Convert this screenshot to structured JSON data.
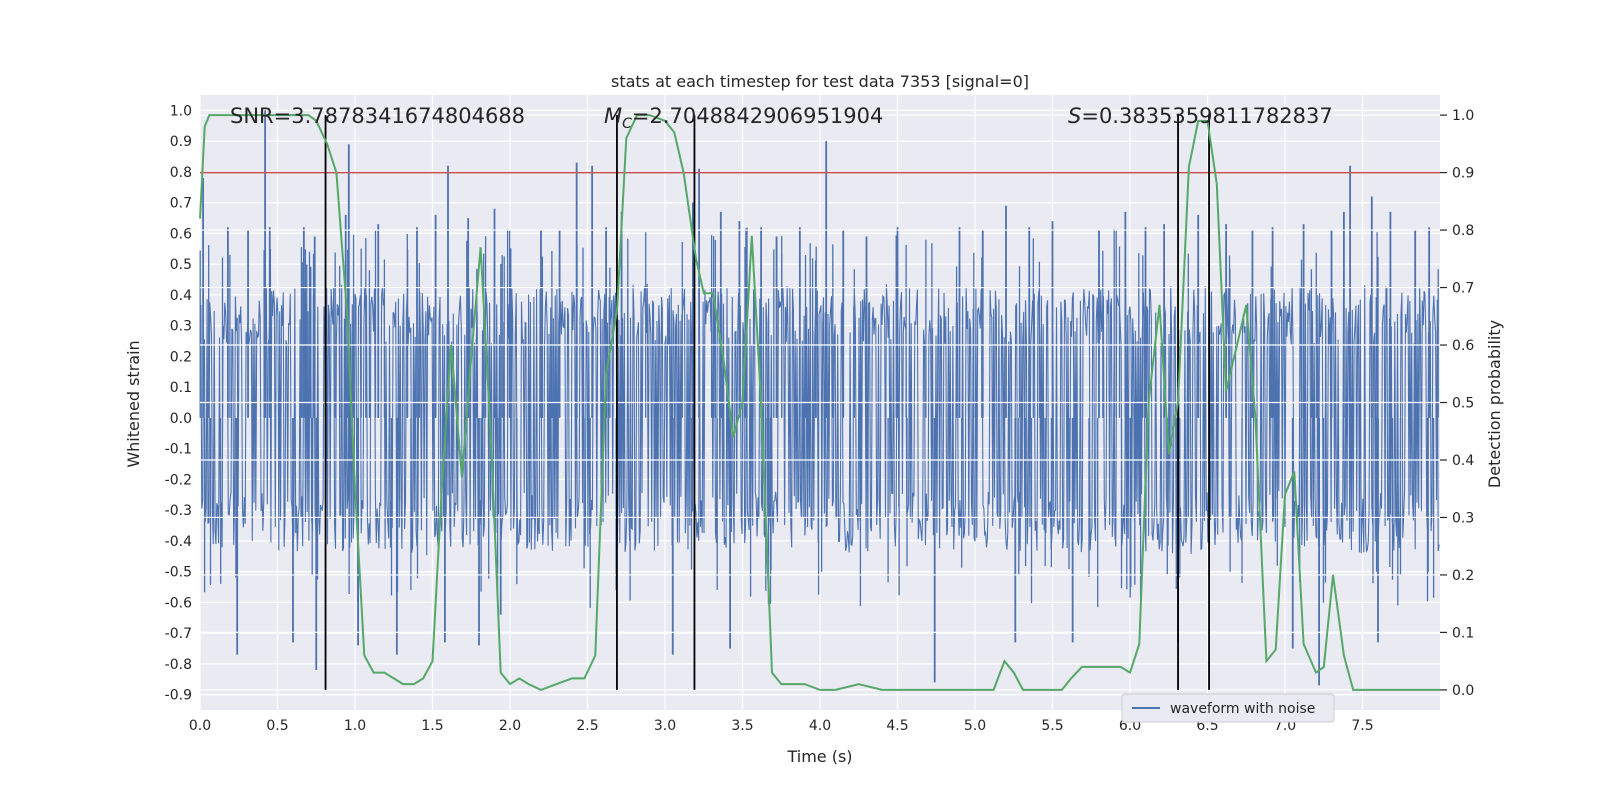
{
  "chart_data": {
    "type": "line",
    "title": "stats at each timestep for test data 7353 [signal=0]",
    "xlabel": "Time (s)",
    "ylabel_left": "Whitened strain",
    "ylabel_right": "Detection probability",
    "xlim": [
      0.0,
      8.0
    ],
    "ylim_left": [
      -0.95,
      1.05
    ],
    "ylim_right": [
      -0.035,
      1.035
    ],
    "x_ticks": [
      "0.0",
      "0.5",
      "1.0",
      "1.5",
      "2.0",
      "2.5",
      "3.0",
      "3.5",
      "4.0",
      "4.5",
      "5.0",
      "5.5",
      "6.0",
      "6.5",
      "7.0",
      "7.5"
    ],
    "y_ticks_left": [
      "1.0",
      "0.9",
      "0.8",
      "0.7",
      "0.6",
      "0.5",
      "0.4",
      "0.3",
      "0.2",
      "0.1",
      "0.0",
      "-0.1",
      "-0.2",
      "-0.3",
      "-0.4",
      "-0.5",
      "-0.6",
      "-0.7",
      "-0.8",
      "-0.9"
    ],
    "y_ticks_right": [
      "1.0",
      "0.9",
      "0.8",
      "0.7",
      "0.6",
      "0.5",
      "0.4",
      "0.3",
      "0.2",
      "0.1",
      "0.0"
    ],
    "grid": true,
    "annotations": [
      {
        "prefix": "SNR",
        "italic": false,
        "subscript": "",
        "value": "=3.7878341674804688"
      },
      {
        "prefix": "M",
        "italic": true,
        "subscript": "C",
        "value": "=2.7048842906951904"
      },
      {
        "prefix": "S",
        "italic": true,
        "subscript": "",
        "value": "=0.3835359811782837"
      }
    ],
    "threshold": {
      "value": 0.9,
      "color": "#c44e52"
    },
    "vertical_lines": [
      0.81,
      2.69,
      3.19,
      6.31,
      6.51
    ],
    "series": [
      {
        "name": "waveform with noise",
        "axis": "left",
        "color": "#4c72b0",
        "envelope_upper": [
          0.4,
          0.42,
          0.43,
          0.42,
          0.44,
          0.43,
          0.42,
          0.44,
          0.43,
          0.42,
          0.42,
          0.43,
          0.44,
          0.43,
          0.42,
          0.43,
          0.44,
          0.42,
          0.43,
          0.44,
          0.42,
          0.43,
          0.42,
          0.44,
          0.43,
          0.42,
          0.43,
          0.44,
          0.43,
          0.42,
          0.43,
          0.42,
          0.44,
          0.42,
          0.43
        ],
        "envelope_lower": [
          -0.42,
          -0.44,
          -0.43,
          -0.45,
          -0.44,
          -0.43,
          -0.45,
          -0.44,
          -0.42,
          -0.44,
          -0.45,
          -0.43,
          -0.44,
          -0.45,
          -0.43,
          -0.44,
          -0.42,
          -0.45,
          -0.44,
          -0.43,
          -0.44,
          -0.45,
          -0.43,
          -0.44,
          -0.45,
          -0.43,
          -0.44,
          -0.45,
          -0.43,
          -0.44,
          -0.42,
          -0.45,
          -0.44,
          -0.43,
          -0.44
        ],
        "spikes": [
          [
            0.02,
            0.78
          ],
          [
            0.18,
            0.62
          ],
          [
            0.24,
            -0.77
          ],
          [
            0.31,
            0.61
          ],
          [
            0.42,
            1.0
          ],
          [
            0.45,
            0.62
          ],
          [
            0.6,
            -0.73
          ],
          [
            0.67,
            0.62
          ],
          [
            0.74,
            0.59
          ],
          [
            0.75,
            -0.82
          ],
          [
            0.96,
            0.89
          ],
          [
            0.94,
            0.66
          ],
          [
            1.02,
            -0.74
          ],
          [
            1.15,
            0.63
          ],
          [
            1.27,
            -0.77
          ],
          [
            1.4,
            0.62
          ],
          [
            1.52,
            0.66
          ],
          [
            1.58,
            -0.73
          ],
          [
            1.6,
            0.82
          ],
          [
            1.73,
            0.65
          ],
          [
            1.8,
            -0.74
          ],
          [
            1.9,
            0.68
          ],
          [
            1.94,
            -0.64
          ],
          [
            2.2,
            0.61
          ],
          [
            2.32,
            0.61
          ],
          [
            2.43,
            0.83
          ],
          [
            2.53,
            0.82
          ],
          [
            2.62,
            0.62
          ],
          [
            2.72,
            0.67
          ],
          [
            3.05,
            -0.77
          ],
          [
            3.18,
            0.7
          ],
          [
            3.22,
            0.81
          ],
          [
            3.36,
            0.67
          ],
          [
            3.42,
            -0.75
          ],
          [
            3.48,
            0.64
          ],
          [
            3.62,
            0.62
          ],
          [
            3.72,
            0.59
          ],
          [
            3.87,
            0.62
          ],
          [
            4.04,
            0.9
          ],
          [
            4.15,
            0.61
          ],
          [
            4.3,
            0.59
          ],
          [
            4.5,
            0.62
          ],
          [
            4.74,
            -0.86
          ],
          [
            4.9,
            0.62
          ],
          [
            5.05,
            0.61
          ],
          [
            5.2,
            0.69
          ],
          [
            5.26,
            -0.73
          ],
          [
            5.35,
            0.62
          ],
          [
            5.5,
            0.64
          ],
          [
            5.63,
            -0.73
          ],
          [
            5.8,
            0.61
          ],
          [
            5.97,
            0.67
          ],
          [
            6.1,
            0.62
          ],
          [
            6.22,
            0.63
          ],
          [
            6.31,
            -0.73
          ],
          [
            6.44,
            0.66
          ],
          [
            6.62,
            0.63
          ],
          [
            6.79,
            0.61
          ],
          [
            6.92,
            0.62
          ],
          [
            7.05,
            -0.75
          ],
          [
            7.12,
            0.63
          ],
          [
            7.22,
            -0.87
          ],
          [
            7.3,
            0.61
          ],
          [
            7.38,
            0.67
          ],
          [
            7.42,
            0.82
          ],
          [
            7.56,
            0.72
          ],
          [
            7.6,
            -0.73
          ],
          [
            7.68,
            0.67
          ],
          [
            7.84,
            0.61
          ],
          [
            7.93,
            0.62
          ]
        ]
      },
      {
        "name": "",
        "axis": "right",
        "color": "#55a868",
        "x": [
          0.0,
          0.03,
          0.06,
          0.12,
          0.2,
          0.3,
          0.4,
          0.5,
          0.6,
          0.7,
          0.75,
          0.82,
          0.88,
          0.95,
          1.0,
          1.06,
          1.12,
          1.19,
          1.25,
          1.31,
          1.38,
          1.44,
          1.5,
          1.56,
          1.62,
          1.69,
          1.75,
          1.81,
          1.88,
          1.94,
          2.0,
          2.06,
          2.12,
          2.2,
          2.3,
          2.4,
          2.48,
          2.55,
          2.62,
          2.69,
          2.75,
          2.82,
          2.9,
          3.0,
          3.06,
          3.12,
          3.2,
          3.25,
          3.31,
          3.38,
          3.44,
          3.5,
          3.56,
          3.62,
          3.69,
          3.75,
          3.8,
          3.9,
          4.0,
          4.1,
          4.25,
          4.4,
          4.6,
          4.8,
          5.0,
          5.12,
          5.19,
          5.25,
          5.31,
          5.4,
          5.5,
          5.56,
          5.62,
          5.69,
          5.75,
          5.81,
          5.88,
          5.94,
          6.0,
          6.06,
          6.12,
          6.19,
          6.25,
          6.31,
          6.38,
          6.44,
          6.5,
          6.56,
          6.62,
          6.69,
          6.75,
          6.81,
          6.88,
          6.94,
          7.0,
          7.06,
          7.12,
          7.2,
          7.25,
          7.31,
          7.38,
          7.44,
          7.6,
          7.75,
          8.0
        ],
        "y": [
          0.82,
          0.98,
          1.0,
          1.0,
          1.0,
          1.0,
          1.0,
          1.0,
          1.0,
          1.0,
          0.99,
          0.95,
          0.9,
          0.65,
          0.35,
          0.06,
          0.03,
          0.03,
          0.02,
          0.01,
          0.01,
          0.02,
          0.05,
          0.35,
          0.6,
          0.37,
          0.58,
          0.77,
          0.42,
          0.03,
          0.01,
          0.02,
          0.01,
          0.0,
          0.01,
          0.02,
          0.02,
          0.06,
          0.55,
          0.66,
          0.96,
          1.0,
          1.0,
          0.99,
          0.97,
          0.9,
          0.75,
          0.69,
          0.69,
          0.57,
          0.44,
          0.5,
          0.79,
          0.5,
          0.03,
          0.01,
          0.01,
          0.01,
          0.0,
          0.0,
          0.01,
          0.0,
          0.0,
          0.0,
          0.0,
          0.0,
          0.05,
          0.03,
          0.0,
          0.0,
          0.0,
          0.0,
          0.02,
          0.04,
          0.04,
          0.04,
          0.04,
          0.04,
          0.03,
          0.08,
          0.5,
          0.67,
          0.41,
          0.5,
          0.91,
          0.99,
          0.99,
          0.88,
          0.52,
          0.6,
          0.67,
          0.47,
          0.05,
          0.07,
          0.34,
          0.38,
          0.08,
          0.03,
          0.04,
          0.2,
          0.06,
          0.0,
          0.0,
          0.0,
          0.0
        ]
      }
    ],
    "legend": {
      "placement": "lower-center-right",
      "entries": [
        "waveform with noise"
      ]
    }
  }
}
